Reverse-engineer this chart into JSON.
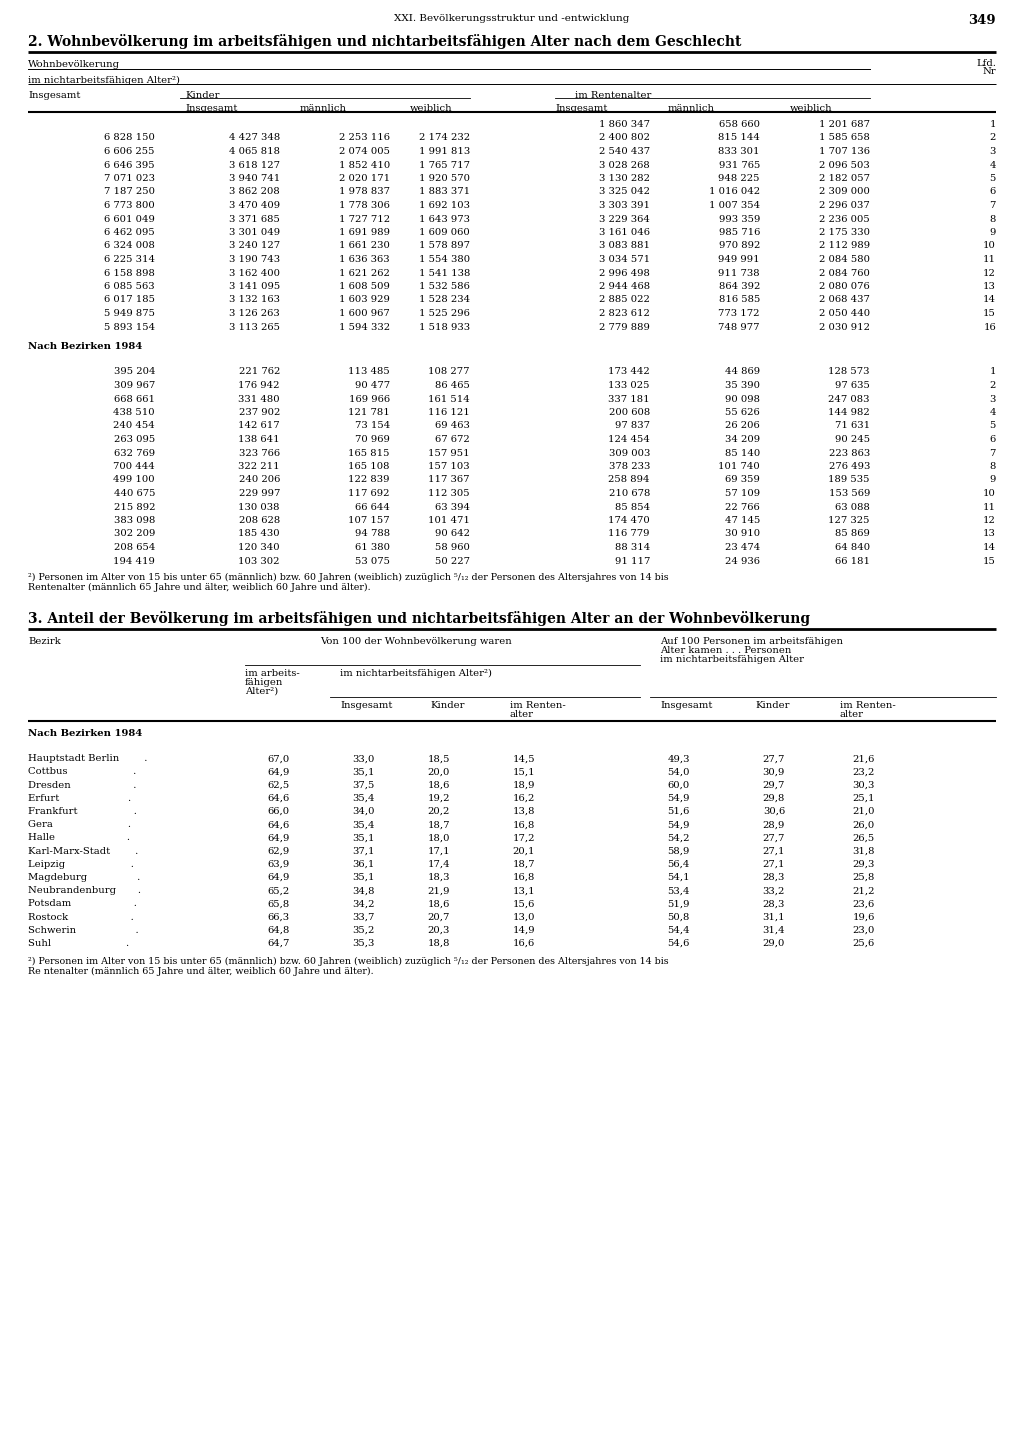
{
  "page_header": "XXI. Bevölkerungsstruktur und -entwicklung",
  "page_number": "349",
  "section2_title": "2. Wohnbevölkerung im arbeitsfähigen und nichtarbeitsfähigen Alter nach dem Geschlecht",
  "section3_title": "3. Anteil der Bevölkerung im arbeitsfähigen und nichtarbeitsfähigen Alter an der Wohnbevölkerung",
  "table2_data_rows1": [
    [
      "",
      "",
      "",
      "",
      "1 860 347",
      "658 660",
      "1 201 687",
      "1"
    ],
    [
      "6 828 150",
      "4 427 348",
      "2 253 116",
      "2 174 232",
      "2 400 802",
      "815 144",
      "1 585 658",
      "2"
    ],
    [
      "6 606 255",
      "4 065 818",
      "2 074 005",
      "1 991 813",
      "2 540 437",
      "833 301",
      "1 707 136",
      "3"
    ],
    [
      "6 646 395",
      "3 618 127",
      "1 852 410",
      "1 765 717",
      "3 028 268",
      "931 765",
      "2 096 503",
      "4"
    ],
    [
      "7 071 023",
      "3 940 741",
      "2 020 171",
      "1 920 570",
      "3 130 282",
      "948 225",
      "2 182 057",
      "5"
    ],
    [
      "7 187 250",
      "3 862 208",
      "1 978 837",
      "1 883 371",
      "3 325 042",
      "1 016 042",
      "2 309 000",
      "6"
    ],
    [
      "6 773 800",
      "3 470 409",
      "1 778 306",
      "1 692 103",
      "3 303 391",
      "1 007 354",
      "2 296 037",
      "7"
    ],
    [
      "6 601 049",
      "3 371 685",
      "1 727 712",
      "1 643 973",
      "3 229 364",
      "993 359",
      "2 236 005",
      "8"
    ],
    [
      "6 462 095",
      "3 301 049",
      "1 691 989",
      "1 609 060",
      "3 161 046",
      "985 716",
      "2 175 330",
      "9"
    ],
    [
      "6 324 008",
      "3 240 127",
      "1 661 230",
      "1 578 897",
      "3 083 881",
      "970 892",
      "2 112 989",
      "10"
    ],
    [
      "6 225 314",
      "3 190 743",
      "1 636 363",
      "1 554 380",
      "3 034 571",
      "949 991",
      "2 084 580",
      "11"
    ],
    [
      "6 158 898",
      "3 162 400",
      "1 621 262",
      "1 541 138",
      "2 996 498",
      "911 738",
      "2 084 760",
      "12"
    ],
    [
      "6 085 563",
      "3 141 095",
      "1 608 509",
      "1 532 586",
      "2 944 468",
      "864 392",
      "2 080 076",
      "13"
    ],
    [
      "6 017 185",
      "3 132 163",
      "1 603 929",
      "1 528 234",
      "2 885 022",
      "816 585",
      "2 068 437",
      "14"
    ],
    [
      "5 949 875",
      "3 126 263",
      "1 600 967",
      "1 525 296",
      "2 823 612",
      "773 172",
      "2 050 440",
      "15"
    ],
    [
      "5 893 154",
      "3 113 265",
      "1 594 332",
      "1 518 933",
      "2 779 889",
      "748 977",
      "2 030 912",
      "16"
    ]
  ],
  "table2_data_rows2": [
    [
      "395 204",
      "221 762",
      "113 485",
      "108 277",
      "173 442",
      "44 869",
      "128 573",
      "1"
    ],
    [
      "309 967",
      "176 942",
      "90 477",
      "86 465",
      "133 025",
      "35 390",
      "97 635",
      "2"
    ],
    [
      "668 661",
      "331 480",
      "169 966",
      "161 514",
      "337 181",
      "90 098",
      "247 083",
      "3"
    ],
    [
      "438 510",
      "237 902",
      "121 781",
      "116 121",
      "200 608",
      "55 626",
      "144 982",
      "4"
    ],
    [
      "240 454",
      "142 617",
      "73 154",
      "69 463",
      "97 837",
      "26 206",
      "71 631",
      "5"
    ],
    [
      "263 095",
      "138 641",
      "70 969",
      "67 672",
      "124 454",
      "34 209",
      "90 245",
      "6"
    ],
    [
      "632 769",
      "323 766",
      "165 815",
      "157 951",
      "309 003",
      "85 140",
      "223 863",
      "7"
    ],
    [
      "700 444",
      "322 211",
      "165 108",
      "157 103",
      "378 233",
      "101 740",
      "276 493",
      "8"
    ],
    [
      "499 100",
      "240 206",
      "122 839",
      "117 367",
      "258 894",
      "69 359",
      "189 535",
      "9"
    ],
    [
      "440 675",
      "229 997",
      "117 692",
      "112 305",
      "210 678",
      "57 109",
      "153 569",
      "10"
    ],
    [
      "215 892",
      "130 038",
      "66 644",
      "63 394",
      "85 854",
      "22 766",
      "63 088",
      "11"
    ],
    [
      "383 098",
      "208 628",
      "107 157",
      "101 471",
      "174 470",
      "47 145",
      "127 325",
      "12"
    ],
    [
      "302 209",
      "185 430",
      "94 788",
      "90 642",
      "116 779",
      "30 910",
      "85 869",
      "13"
    ],
    [
      "208 654",
      "120 340",
      "61 380",
      "58 960",
      "88 314",
      "23 474",
      "64 840",
      "14"
    ],
    [
      "194 419",
      "103 302",
      "53 075",
      "50 227",
      "91 117",
      "24 936",
      "66 181",
      "15"
    ]
  ],
  "table3_data": [
    [
      "Hauptstadt Berlin        .",
      "67,0",
      "33,0",
      "18,5",
      "14,5",
      "49,3",
      "27,7",
      "21,6"
    ],
    [
      "Cottbus                     .",
      "64,9",
      "35,1",
      "20,0",
      "15,1",
      "54,0",
      "30,9",
      "23,2"
    ],
    [
      "Dresden                    .",
      "62,5",
      "37,5",
      "18,6",
      "18,9",
      "60,0",
      "29,7",
      "30,3"
    ],
    [
      "Erfurt                      .",
      "64,6",
      "35,4",
      "19,2",
      "16,2",
      "54,9",
      "29,8",
      "25,1"
    ],
    [
      "Frankfurt                  .",
      "66,0",
      "34,0",
      "20,2",
      "13,8",
      "51,6",
      "30,6",
      "21,0"
    ],
    [
      "Gera                        .",
      "64,6",
      "35,4",
      "18,7",
      "16,8",
      "54,9",
      "28,9",
      "26,0"
    ],
    [
      "Halle                       .",
      "64,9",
      "35,1",
      "18,0",
      "17,2",
      "54,2",
      "27,7",
      "26,5"
    ],
    [
      "Karl-Marx-Stadt        .",
      "62,9",
      "37,1",
      "17,1",
      "20,1",
      "58,9",
      "27,1",
      "31,8"
    ],
    [
      "Leipzig                     .",
      "63,9",
      "36,1",
      "17,4",
      "18,7",
      "56,4",
      "27,1",
      "29,3"
    ],
    [
      "Magdeburg                .",
      "64,9",
      "35,1",
      "18,3",
      "16,8",
      "54,1",
      "28,3",
      "25,8"
    ],
    [
      "Neubrandenburg       .",
      "65,2",
      "34,8",
      "21,9",
      "13,1",
      "53,4",
      "33,2",
      "21,2"
    ],
    [
      "Potsdam                    .",
      "65,8",
      "34,2",
      "18,6",
      "15,6",
      "51,9",
      "28,3",
      "23,6"
    ],
    [
      "Rostock                    .",
      "66,3",
      "33,7",
      "20,7",
      "13,0",
      "50,8",
      "31,1",
      "19,6"
    ],
    [
      "Schwerin                   .",
      "64,8",
      "35,2",
      "20,3",
      "14,9",
      "54,4",
      "31,4",
      "23,0"
    ],
    [
      "Suhl                        .",
      "64,7",
      "35,3",
      "18,8",
      "16,6",
      "54,6",
      "29,0",
      "25,6"
    ]
  ]
}
